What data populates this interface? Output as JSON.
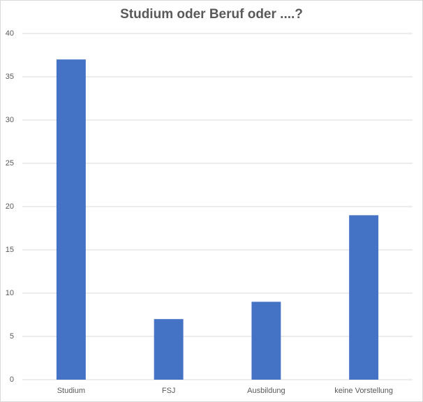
{
  "chart_data": {
    "type": "bar",
    "title": "Studium oder Beruf oder ....?",
    "categories": [
      "Studium",
      "FSJ",
      "Ausbildung",
      "keine Vorstellung"
    ],
    "values": [
      37,
      7,
      9,
      19
    ],
    "color": "#4472c4",
    "ylim": [
      0,
      40
    ],
    "yticks": [
      0,
      5,
      10,
      15,
      20,
      25,
      30,
      35,
      40
    ],
    "grid": true
  }
}
